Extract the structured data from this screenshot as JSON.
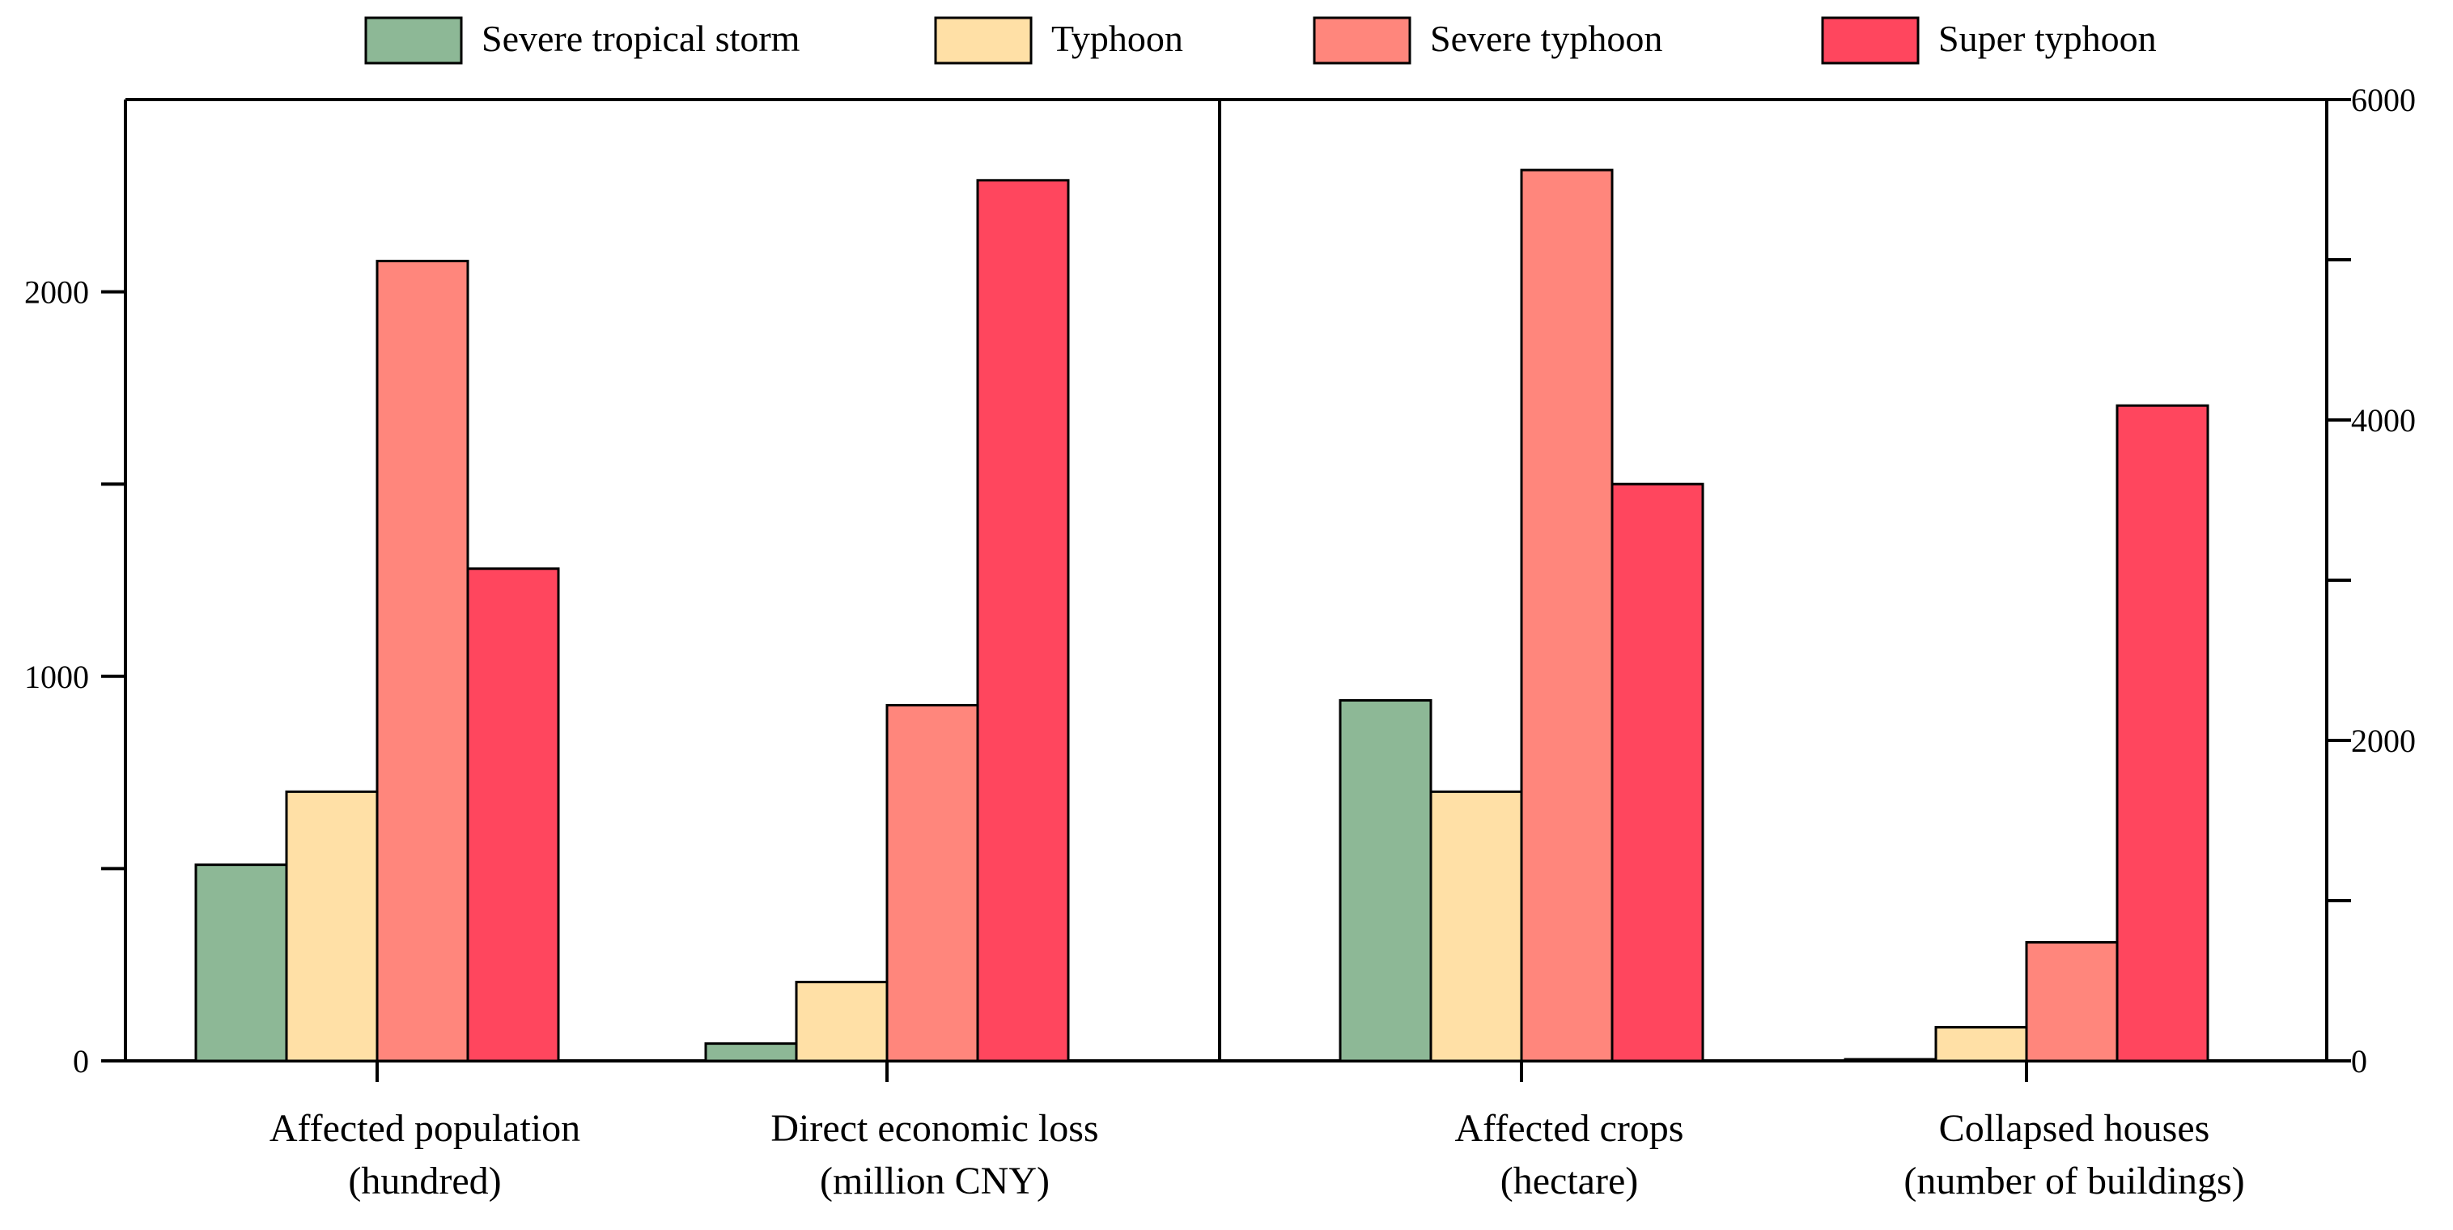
{
  "chart_data": {
    "type": "bar",
    "legend": {
      "placement": "top"
    },
    "series": [
      {
        "name": "Severe tropical storm",
        "color": "#8DB896"
      },
      {
        "name": "Typhoon",
        "color": "#FFE0A6"
      },
      {
        "name": "Severe typhoon",
        "color": "#FF867C"
      },
      {
        "name": "Super typhoon",
        "color": "#FF465E"
      }
    ],
    "left_axis": {
      "ylim": [
        0,
        2500
      ],
      "ticks": [
        0,
        1000,
        2000
      ],
      "minor_ticks": [
        500,
        1500
      ]
    },
    "right_axis": {
      "ylim": [
        0,
        6000
      ],
      "ticks": [
        0,
        2000,
        4000,
        6000
      ],
      "minor_ticks": [
        1000,
        3000,
        5000
      ]
    },
    "categories": [
      {
        "line1": "Affected population",
        "line2": "(hundred)",
        "axis": "left",
        "values": [
          510,
          700,
          2080,
          1280
        ]
      },
      {
        "line1": "Direct economic loss",
        "line2": "(million CNY)",
        "axis": "left",
        "values": [
          45,
          205,
          925,
          2290
        ]
      },
      {
        "line1": "Affected crops",
        "line2": "(hectare)",
        "axis": "right",
        "values": [
          2250,
          1680,
          5560,
          3600
        ]
      },
      {
        "line1": "Collapsed houses",
        "line2": "(number of buildings)",
        "axis": "right",
        "values": [
          10,
          210,
          740,
          4090
        ]
      }
    ]
  }
}
